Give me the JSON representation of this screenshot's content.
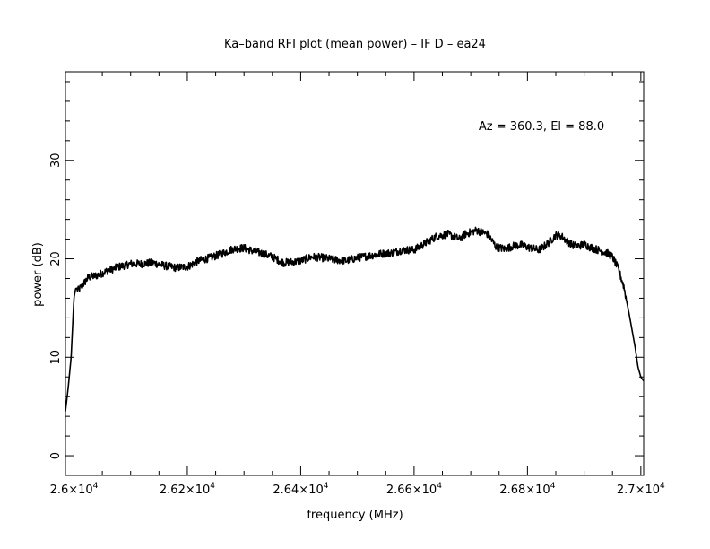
{
  "chart_data": {
    "type": "line",
    "title": "Ka–band RFI plot (mean power) – IF D – ea24",
    "annotation": "Az = 360.3, El = 88.0",
    "xlabel": "frequency (MHz)",
    "ylabel": "power (dB)",
    "xlim": [
      25985,
      27005
    ],
    "ylim": [
      -2,
      39
    ],
    "x_ticks": [
      {
        "value": 26000,
        "mant": "2.6×10",
        "exp": "4"
      },
      {
        "value": 26200,
        "mant": "2.62×10",
        "exp": "4"
      },
      {
        "value": 26400,
        "mant": "2.64×10",
        "exp": "4"
      },
      {
        "value": 26600,
        "mant": "2.66×10",
        "exp": "4"
      },
      {
        "value": 26800,
        "mant": "2.68×10",
        "exp": "4"
      },
      {
        "value": 27000,
        "mant": "2.7×10",
        "exp": "4"
      }
    ],
    "y_ticks": [
      {
        "value": 0,
        "label": "0"
      },
      {
        "value": 10,
        "label": "10"
      },
      {
        "value": 20,
        "label": "20"
      },
      {
        "value": 30,
        "label": "30"
      }
    ],
    "x_minor_step": 50,
    "y_minor_step": 2,
    "line_color": "#000000",
    "series": [
      {
        "x": [
          25985,
          25990,
          25995,
          26000,
          26003,
          26008,
          26015,
          26025,
          26040,
          26060,
          26080,
          26100,
          26120,
          26140,
          26160,
          26180,
          26200,
          26220,
          26240,
          26260,
          26280,
          26300,
          26315,
          26330,
          26350,
          26370,
          26390,
          26400,
          26420,
          26440,
          26460,
          26480,
          26500,
          26520,
          26540,
          26560,
          26580,
          26600,
          26620,
          26640,
          26660,
          26680,
          26690,
          26710,
          26730,
          26745,
          26760,
          26775,
          26790,
          26805,
          26820,
          26835,
          26850,
          26860,
          26870,
          26880,
          26890,
          26900,
          26910,
          26920,
          26930,
          26940,
          26950,
          26960,
          26970,
          26980,
          26990,
          26995,
          27000,
          27005
        ],
        "y": [
          4.5,
          7,
          10,
          16,
          17,
          16.8,
          17.3,
          18.1,
          18.3,
          18.8,
          19.2,
          19.5,
          19.5,
          19.6,
          19.3,
          19.1,
          19.2,
          19.8,
          20.1,
          20.5,
          21,
          21.1,
          20.8,
          20.6,
          20.2,
          19.6,
          19.7,
          19.8,
          20.2,
          20.1,
          19.9,
          19.8,
          20.1,
          20.3,
          20.5,
          20.6,
          20.9,
          20.9,
          21.6,
          22.3,
          22.5,
          22,
          22.5,
          22.9,
          22.5,
          21.2,
          21,
          21.3,
          21.4,
          21.1,
          20.9,
          21.5,
          22.4,
          22.3,
          21.8,
          21.4,
          21.3,
          21.5,
          21.2,
          21,
          20.8,
          20.6,
          20.2,
          19,
          17.2,
          14.2,
          11,
          9,
          8,
          7.6
        ]
      }
    ]
  }
}
